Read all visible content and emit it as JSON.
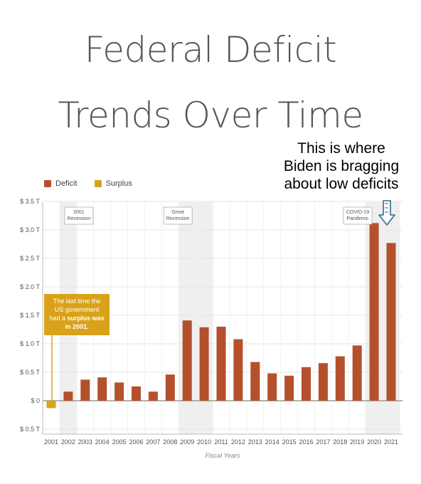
{
  "title": {
    "line1": "Federal Deficit",
    "line2": "Trends Over Time"
  },
  "annotation": {
    "line1": "This is where",
    "line2": "Biden is bragging",
    "line3": "about low deficits"
  },
  "surplus_note": {
    "line1": "The last time the",
    "line2": "US government",
    "line3_pre": "had a ",
    "line3_bold": "surplus was",
    "line4_bold": "in 2001."
  },
  "colors": {
    "deficit": "#b5502d",
    "surplus": "#d9a21a",
    "band": "#efefef",
    "arrow": "#2b6f8a"
  },
  "chart_data": {
    "type": "bar",
    "categories": [
      "2001",
      "2002",
      "2003",
      "2004",
      "2005",
      "2006",
      "2007",
      "2008",
      "2009",
      "2010",
      "2011",
      "2012",
      "2013",
      "2014",
      "2015",
      "2016",
      "2017",
      "2018",
      "2019",
      "2020",
      "2021"
    ],
    "values": [
      -0.13,
      0.16,
      0.37,
      0.41,
      0.32,
      0.25,
      0.16,
      0.46,
      1.41,
      1.29,
      1.3,
      1.08,
      0.68,
      0.48,
      0.44,
      0.59,
      0.66,
      0.78,
      0.97,
      3.12,
      2.77
    ],
    "legend": [
      {
        "name": "Deficit",
        "color": "#b5502d"
      },
      {
        "name": "Surplus",
        "color": "#d9a21a"
      }
    ],
    "xlabel": "Fiscal Years",
    "ylabel": "",
    "y_ticks": [
      {
        "value": 3.5,
        "label": "$ 3.5 T"
      },
      {
        "value": 3.0,
        "label": "$ 3.0 T"
      },
      {
        "value": 2.5,
        "label": "$ 2.5 T"
      },
      {
        "value": 2.0,
        "label": "$ 2.0 T"
      },
      {
        "value": 1.5,
        "label": "$ 1.5 T"
      },
      {
        "value": 1.0,
        "label": "$ 1.0 T"
      },
      {
        "value": 0.5,
        "label": "$ 0.5 T"
      },
      {
        "value": 0,
        "label": "$ 0"
      },
      {
        "value": -0.5,
        "label": "$ 0.5 T"
      }
    ],
    "ylim": [
      -0.5,
      3.5
    ],
    "grid": true,
    "shaded_periods": [
      {
        "label_lines": [
          "2001",
          "Recession"
        ],
        "from": 2001.5,
        "to": 2002.5
      },
      {
        "label_lines": [
          "Great",
          "Recession"
        ],
        "from": 2008.5,
        "to": 2010.5
      },
      {
        "label_lines": [
          "COVID-19",
          "Pandemic"
        ],
        "from": 2019.5,
        "to": 2021.5
      }
    ]
  }
}
